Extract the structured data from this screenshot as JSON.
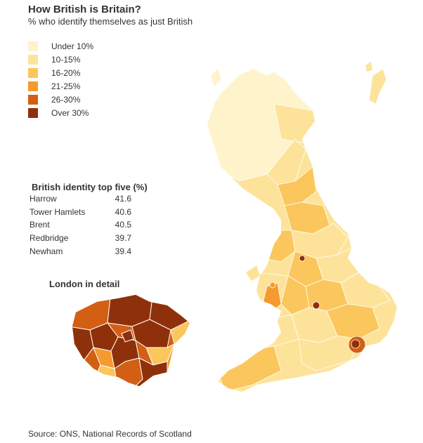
{
  "title": "How British is Britain?",
  "subtitle": "% who identify themselves as just British",
  "legend": [
    {
      "label": "Under 10%",
      "color": "#fff3cc"
    },
    {
      "label": "10-15%",
      "color": "#fde39a"
    },
    {
      "label": "16-20%",
      "color": "#fbc65c"
    },
    {
      "label": "21-25%",
      "color": "#f59a2e"
    },
    {
      "label": "26-30%",
      "color": "#d35f15"
    },
    {
      "label": "Over 30%",
      "color": "#8e310a"
    }
  ],
  "top_five": {
    "title": "British identity top five (%)",
    "rows": [
      {
        "name": "Harrow",
        "value": "41.6"
      },
      {
        "name": "Tower Hamlets",
        "value": "40.6"
      },
      {
        "name": "Brent",
        "value": "40.5"
      },
      {
        "name": "Redbridge",
        "value": "39.7"
      },
      {
        "name": "Newham",
        "value": "39.4"
      }
    ]
  },
  "london_heading": "London in detail",
  "source": "Source: ONS, National Records of Scotland"
}
